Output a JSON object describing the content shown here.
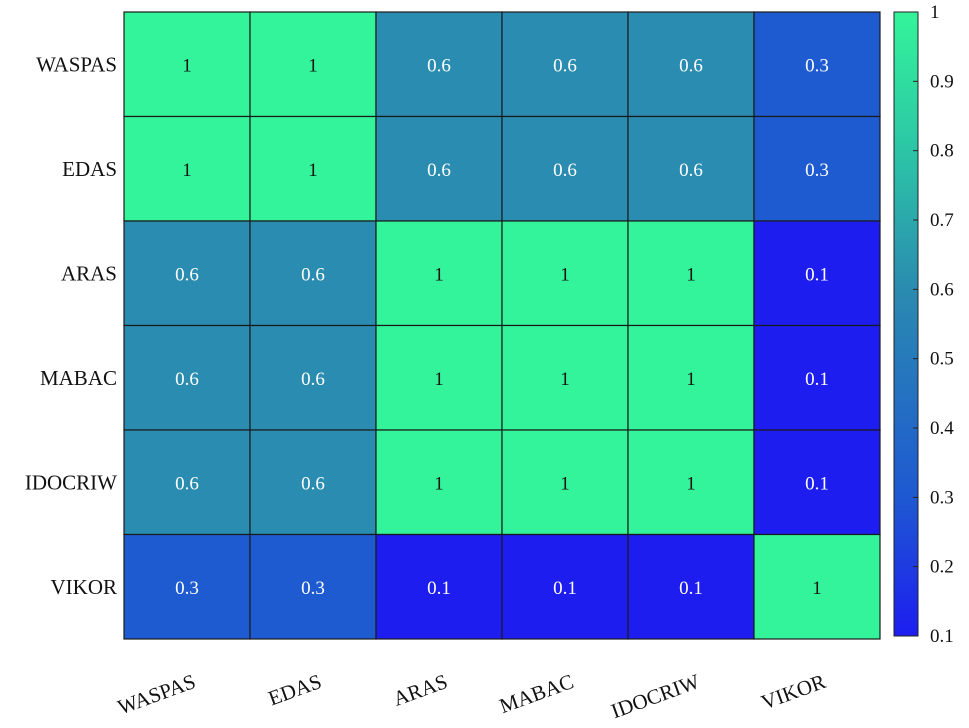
{
  "chart_data": {
    "type": "heatmap",
    "title": "",
    "xlabel": "",
    "ylabel": "",
    "row_labels": [
      "WASPAS",
      "EDAS",
      "ARAS",
      "MABAC",
      "IDOCRIW",
      "VIKOR"
    ],
    "col_labels": [
      "WASPAS",
      "EDAS",
      "ARAS",
      "MABAC",
      "IDOCRIW",
      "VIKOR"
    ],
    "values": [
      [
        1,
        1,
        0.6,
        0.6,
        0.6,
        0.3
      ],
      [
        1,
        1,
        0.6,
        0.6,
        0.6,
        0.3
      ],
      [
        0.6,
        0.6,
        1,
        1,
        1,
        0.1
      ],
      [
        0.6,
        0.6,
        1,
        1,
        1,
        0.1
      ],
      [
        0.6,
        0.6,
        1,
        1,
        1,
        0.1
      ],
      [
        0.3,
        0.3,
        0.1,
        0.1,
        0.1,
        1
      ]
    ],
    "cell_labels": [
      [
        "1",
        "1",
        "0.6",
        "0.6",
        "0.6",
        "0.3"
      ],
      [
        "1",
        "1",
        "0.6",
        "0.6",
        "0.6",
        "0.3"
      ],
      [
        "0.6",
        "0.6",
        "1",
        "1",
        "1",
        "0.1"
      ],
      [
        "0.6",
        "0.6",
        "1",
        "1",
        "1",
        "0.1"
      ],
      [
        "0.6",
        "0.6",
        "1",
        "1",
        "1",
        "0.1"
      ],
      [
        "0.3",
        "0.3",
        "0.1",
        "0.1",
        "0.1",
        "1"
      ]
    ],
    "colorbar": {
      "range": [
        0.1,
        1
      ],
      "ticks": [
        0.1,
        0.2,
        0.3,
        0.4,
        0.5,
        0.6,
        0.7,
        0.8,
        0.9,
        1
      ],
      "tick_labels": [
        "0.1",
        "0.2",
        "0.3",
        "0.4",
        "0.5",
        "0.6",
        "0.7",
        "0.8",
        "0.9",
        "1"
      ],
      "colormap": [
        "#1d1df0",
        "#1e5ad0",
        "#2a8ab0",
        "#2ce0a0",
        "#33f49a"
      ]
    }
  }
}
